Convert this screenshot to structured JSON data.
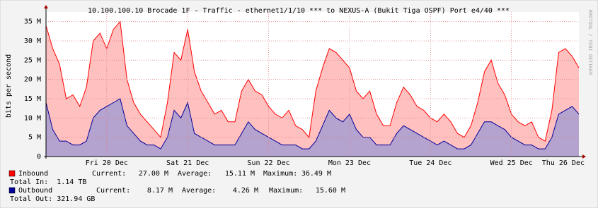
{
  "chart_data": {
    "type": "area",
    "title": "10.100.100.10 Brocade 1F - Traffic - ethernet1/1/10 *** to NEXUS-A (Bukit Tiga OSPF) Port e4/40 ***",
    "y_label": "bits per second",
    "side_text": "RRDTOOL / TOBI OETIKER",
    "categories": [
      null,
      null,
      null,
      null,
      null,
      null,
      null,
      null,
      null,
      "Fri 20 Dec",
      null,
      null,
      null,
      null,
      null,
      null,
      null,
      null,
      null,
      null,
      null,
      "Sat 21 Dec",
      null,
      null,
      null,
      null,
      null,
      null,
      null,
      null,
      null,
      null,
      null,
      "Sun 22 Dec",
      null,
      null,
      null,
      null,
      null,
      null,
      null,
      null,
      null,
      null,
      null,
      "Mon 23 Dec",
      null,
      null,
      null,
      null,
      null,
      null,
      null,
      null,
      null,
      null,
      null,
      "Tue 24 Dec",
      null,
      null,
      null,
      null,
      null,
      null,
      null,
      null,
      null,
      null,
      null,
      "Wed 25 Dec",
      null,
      null,
      null,
      null,
      null,
      null,
      null,
      null,
      null,
      "Thu 26 Dec"
    ],
    "series": [
      {
        "name": "Inbound",
        "color": "#ff0000",
        "fill": "#ffc0c0",
        "values": [
          34,
          28,
          24,
          15,
          16,
          13,
          18,
          30,
          32,
          28,
          33,
          35,
          20,
          14,
          11,
          9,
          7,
          5,
          14,
          27,
          25,
          33,
          22,
          17,
          14,
          11,
          12,
          9,
          9,
          17,
          20,
          17,
          16,
          13,
          11,
          10,
          12,
          8,
          7,
          5,
          17,
          23,
          28,
          27,
          25,
          23,
          17,
          15,
          17,
          11,
          8,
          8,
          14,
          18,
          16,
          13,
          12,
          10,
          9,
          11,
          9,
          6,
          5,
          8,
          14,
          22,
          25,
          19,
          16,
          11,
          9,
          8,
          9,
          5,
          4,
          12,
          27,
          28,
          26,
          23
        ],
        "stats": [
          "Current:",
          "27.00 M",
          "Average:",
          "15.11 M",
          "Maximum:",
          "36.49 M"
        ],
        "total": "Total In:  1.14 TB"
      },
      {
        "name": "Outbound",
        "color": "#000099",
        "fill": "#b4a2cf",
        "values": [
          14,
          7,
          4,
          4,
          3,
          3,
          4,
          10,
          12,
          13,
          14,
          15,
          8,
          6,
          4,
          3,
          3,
          2,
          5,
          12,
          10,
          14,
          6,
          5,
          4,
          3,
          3,
          3,
          3,
          6,
          9,
          7,
          6,
          5,
          4,
          3,
          3,
          3,
          2,
          2,
          4,
          8,
          12,
          10,
          9,
          11,
          7,
          5,
          5,
          3,
          3,
          3,
          6,
          8,
          7,
          6,
          5,
          4,
          3,
          4,
          3,
          2,
          2,
          3,
          6,
          9,
          9,
          8,
          7,
          5,
          4,
          3,
          3,
          2,
          2,
          5,
          11,
          12,
          13,
          11
        ],
        "stats": [
          "Current:",
          "8.17 M",
          "Average:",
          "4.26 M",
          "Maximum:",
          "15.60 M"
        ],
        "total": "Total Out: 321.94 GB"
      }
    ],
    "ylim": [
      0,
      37.5
    ],
    "yticks": [
      0,
      {
        "value": 5,
        "label": "5 M"
      },
      {
        "value": 10,
        "label": "10 M"
      },
      {
        "value": 15,
        "label": "15 M"
      },
      {
        "value": 20,
        "label": "20 M"
      },
      {
        "value": 25,
        "label": "25 M"
      },
      {
        "value": 30,
        "label": "30 M"
      },
      {
        "value": 35,
        "label": "35 M"
      }
    ],
    "grid": true
  }
}
